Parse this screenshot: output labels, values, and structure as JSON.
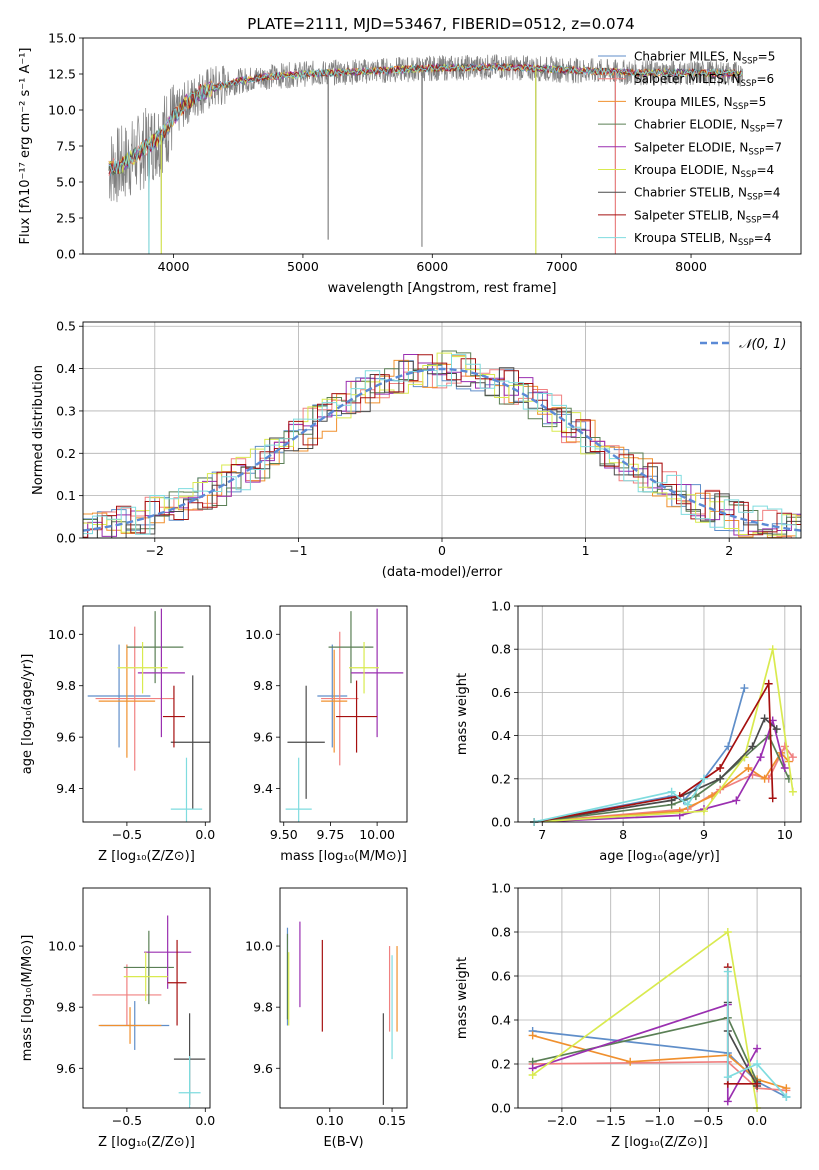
{
  "figure_title": "PLATE=2111, MJD=53467, FIBERID=0512, z=0.074",
  "models": [
    {
      "label": "Chabrier MILES, N",
      "sub": "SSP",
      "tail": "=5",
      "color": "#5f8ec9"
    },
    {
      "label": "Salpeter MILES, N",
      "sub": "SSP",
      "tail": "=6",
      "color": "#f08080"
    },
    {
      "label": "Kroupa MILES, N",
      "sub": "SSP",
      "tail": "=5",
      "color": "#f0902e"
    },
    {
      "label": "Chabrier ELODIE, N",
      "sub": "SSP",
      "tail": "=7",
      "color": "#5a7f55"
    },
    {
      "label": "Salpeter ELODIE, N",
      "sub": "SSP",
      "tail": "=7",
      "color": "#9a2fb0"
    },
    {
      "label": "Kroupa ELODIE, N",
      "sub": "SSP",
      "tail": "=4",
      "color": "#d9ea4f"
    },
    {
      "label": "Chabrier STELIB, N",
      "sub": "SSP",
      "tail": "=4",
      "color": "#4a4a4a"
    },
    {
      "label": "Salpeter STELIB, N",
      "sub": "SSP",
      "tail": "=4",
      "color": "#a51010"
    },
    {
      "label": "Kroupa STELIB, N",
      "sub": "SSP",
      "tail": "=4",
      "color": "#7fdcdf"
    }
  ],
  "chart_data": [
    {
      "id": "spectrum",
      "type": "line",
      "xlabel": "wavelength [Angstrom, rest frame]",
      "ylabel": "Flux [fλ10⁻¹⁷ erg cm⁻² s⁻¹ A⁻¹]",
      "xlim": [
        3300,
        8850
      ],
      "ylim": [
        0,
        15
      ],
      "xticks": [
        "4000",
        "5000",
        "6000",
        "7000",
        "8000"
      ],
      "yticks": [
        "0.0",
        "2.5",
        "5.0",
        "7.5",
        "10.0",
        "12.5",
        "15.0"
      ],
      "data_color": "#808080",
      "continuum": [
        [
          3500,
          6.0
        ],
        [
          3600,
          6.2
        ],
        [
          3700,
          6.8
        ],
        [
          3800,
          7.5
        ],
        [
          3900,
          8.2
        ],
        [
          4000,
          9.5
        ],
        [
          4100,
          10.5
        ],
        [
          4200,
          11.2
        ],
        [
          4300,
          11.5
        ],
        [
          4500,
          12.0
        ],
        [
          4700,
          12.3
        ],
        [
          5000,
          12.5
        ],
        [
          5500,
          12.7
        ],
        [
          6000,
          12.9
        ],
        [
          6500,
          13.0
        ],
        [
          7000,
          12.8
        ],
        [
          7500,
          12.6
        ],
        [
          8000,
          12.6
        ],
        [
          8400,
          12.5
        ]
      ],
      "spikes": [
        [
          3810,
          0.0
        ],
        [
          3905,
          0.0
        ],
        [
          5195,
          1.0
        ],
        [
          5920,
          0.5
        ],
        [
          6800,
          0.0
        ],
        [
          7415,
          0.0
        ]
      ],
      "legend_position": "upper right"
    },
    {
      "id": "residuals",
      "type": "histogram",
      "xlabel": "(data-model)/error",
      "ylabel": "Normed distribution",
      "xlim": [
        -2.5,
        2.5
      ],
      "ylim": [
        0,
        0.51
      ],
      "xticks": [
        "−2",
        "−1",
        "0",
        "1",
        "2"
      ],
      "yticks": [
        "0.0",
        "0.1",
        "0.2",
        "0.3",
        "0.4",
        "0.5"
      ],
      "reference": {
        "label": "𝒩(0, 1)",
        "color": "#5b8ad6",
        "mean": 0,
        "sigma": 1
      },
      "grid": true,
      "legend_position": "upper right"
    },
    {
      "id": "age_vs_Z",
      "type": "errorbar",
      "xlabel": "Z [log₁₀(Z/Z⊙)]",
      "ylabel": "age  [log₁₀(age/yr)]",
      "xlim": [
        -0.78,
        0.03
      ],
      "ylim": [
        9.27,
        10.11
      ],
      "xticks": [
        "−0.5",
        "0.0"
      ],
      "yticks": [
        "9.4",
        "9.6",
        "9.8",
        "10.0"
      ],
      "points": [
        {
          "x": -0.55,
          "xerr": 0.2,
          "y": 9.76,
          "yerr": 0.2
        },
        {
          "x": -0.45,
          "xerr": 0.25,
          "y": 9.75,
          "yerr": 0.28
        },
        {
          "x": -0.5,
          "xerr": 0.18,
          "y": 9.74,
          "yerr": 0.22
        },
        {
          "x": -0.32,
          "xerr": 0.18,
          "y": 9.95,
          "yerr": 0.14
        },
        {
          "x": -0.28,
          "xerr": 0.15,
          "y": 9.85,
          "yerr": 0.25
        },
        {
          "x": -0.4,
          "xerr": 0.16,
          "y": 9.87,
          "yerr": 0.1
        },
        {
          "x": -0.08,
          "xerr": 0.14,
          "y": 9.58,
          "yerr": 0.26
        },
        {
          "x": -0.2,
          "xerr": 0.07,
          "y": 9.68,
          "yerr": 0.12
        },
        {
          "x": -0.12,
          "xerr": 0.1,
          "y": 9.32,
          "yerr": 0.2
        }
      ]
    },
    {
      "id": "age_vs_mass",
      "type": "errorbar",
      "xlabel": "mass [log₁₀(M/M⊙)]",
      "ylabel": "",
      "xlim": [
        9.48,
        10.16
      ],
      "ylim": [
        9.27,
        10.11
      ],
      "xticks": [
        "9.50",
        "9.75",
        "10.00"
      ],
      "yticks": [
        "9.4",
        "9.6",
        "9.8",
        "10.0"
      ],
      "points": [
        {
          "x": 9.76,
          "xerr": 0.08,
          "y": 9.76,
          "yerr": 0.2
        },
        {
          "x": 9.8,
          "xerr": 0.1,
          "y": 9.75,
          "yerr": 0.26
        },
        {
          "x": 9.77,
          "xerr": 0.07,
          "y": 9.74,
          "yerr": 0.2
        },
        {
          "x": 9.86,
          "xerr": 0.12,
          "y": 9.95,
          "yerr": 0.14
        },
        {
          "x": 10.0,
          "xerr": 0.14,
          "y": 9.85,
          "yerr": 0.25
        },
        {
          "x": 9.93,
          "xerr": 0.08,
          "y": 9.87,
          "yerr": 0.1
        },
        {
          "x": 9.62,
          "xerr": 0.1,
          "y": 9.58,
          "yerr": 0.22
        },
        {
          "x": 9.89,
          "xerr": 0.11,
          "y": 9.68,
          "yerr": 0.14
        },
        {
          "x": 9.58,
          "xerr": 0.07,
          "y": 9.32,
          "yerr": 0.2
        }
      ]
    },
    {
      "id": "weight_vs_age",
      "type": "line",
      "xlabel": "age  [log₁₀(age/yr)]",
      "ylabel": "mass weight",
      "xlim": [
        6.7,
        10.2
      ],
      "ylim": [
        0,
        1
      ],
      "xticks": [
        "7",
        "8",
        "9",
        "10"
      ],
      "yticks": [
        "0.0",
        "0.2",
        "0.4",
        "0.6",
        "0.8",
        "1.0"
      ],
      "grid": true,
      "series": [
        {
          "x": [
            6.9,
            8.6,
            8.75,
            9.0,
            9.3,
            9.5
          ],
          "y": [
            0.0,
            0.12,
            0.1,
            0.2,
            0.35,
            0.62
          ]
        },
        {
          "x": [
            6.9,
            8.8,
            9.2,
            9.6,
            9.8,
            10.0,
            10.1
          ],
          "y": [
            0.0,
            0.06,
            0.15,
            0.22,
            0.2,
            0.35,
            0.3
          ]
        },
        {
          "x": [
            6.9,
            8.7,
            9.1,
            9.55,
            9.75,
            9.95,
            10.05
          ],
          "y": [
            0.0,
            0.05,
            0.12,
            0.25,
            0.2,
            0.32,
            0.28
          ]
        },
        {
          "x": [
            6.9,
            8.6,
            8.9,
            9.2,
            9.5,
            9.8,
            10.05
          ],
          "y": [
            0.0,
            0.08,
            0.12,
            0.2,
            0.3,
            0.4,
            0.2
          ]
        },
        {
          "x": [
            6.9,
            8.7,
            9.0,
            9.4,
            9.7,
            9.85,
            10.0
          ],
          "y": [
            0.0,
            0.03,
            0.06,
            0.1,
            0.3,
            0.47,
            0.25
          ]
        },
        {
          "x": [
            6.9,
            9.0,
            9.5,
            9.85,
            10.1
          ],
          "y": [
            0.0,
            0.05,
            0.3,
            0.8,
            0.14
          ]
        },
        {
          "x": [
            6.9,
            8.6,
            9.2,
            9.6,
            9.75,
            9.9
          ],
          "y": [
            0.0,
            0.1,
            0.2,
            0.35,
            0.48,
            0.43
          ]
        },
        {
          "x": [
            6.9,
            8.7,
            9.2,
            9.8,
            9.85
          ],
          "y": [
            0.0,
            0.12,
            0.25,
            0.64,
            0.11
          ]
        },
        {
          "x": [
            6.9,
            8.6,
            8.8,
            9.0
          ],
          "y": [
            0.0,
            0.14,
            0.08,
            0.2
          ]
        }
      ]
    },
    {
      "id": "mass_vs_Z",
      "type": "errorbar",
      "xlabel": "Z [log₁₀(Z/Z⊙)]",
      "ylabel": "mass [log₁₀(M/M⊙)]",
      "xlim": [
        -0.78,
        0.03
      ],
      "ylim": [
        9.47,
        10.19
      ],
      "xticks": [
        "−0.5",
        "0.0"
      ],
      "yticks": [
        "9.6",
        "9.8",
        "10.0"
      ],
      "points": [
        {
          "x": -0.45,
          "xerr": 0.22,
          "y": 9.74,
          "yerr": 0.08
        },
        {
          "x": -0.5,
          "xerr": 0.22,
          "y": 9.84,
          "yerr": 0.1
        },
        {
          "x": -0.48,
          "xerr": 0.2,
          "y": 9.74,
          "yerr": 0.06
        },
        {
          "x": -0.36,
          "xerr": 0.16,
          "y": 9.93,
          "yerr": 0.12
        },
        {
          "x": -0.24,
          "xerr": 0.15,
          "y": 9.98,
          "yerr": 0.12
        },
        {
          "x": -0.38,
          "xerr": 0.14,
          "y": 9.9,
          "yerr": 0.08
        },
        {
          "x": -0.1,
          "xerr": 0.1,
          "y": 9.63,
          "yerr": 0.15
        },
        {
          "x": -0.18,
          "xerr": 0.06,
          "y": 9.88,
          "yerr": 0.14
        },
        {
          "x": -0.1,
          "xerr": 0.07,
          "y": 9.52,
          "yerr": 0.12
        }
      ]
    },
    {
      "id": "mass_vs_EBV",
      "type": "errorbar",
      "xlabel": "E(B-V)",
      "ylabel": "",
      "xlim": [
        0.06,
        0.162
      ],
      "ylim": [
        9.47,
        10.19
      ],
      "xticks": [
        "0.10",
        "0.15"
      ],
      "yticks": [
        "9.6",
        "9.8",
        "10.0"
      ],
      "points": [
        {
          "x": 0.066,
          "xerr": 0,
          "y": 9.9,
          "yerr": 0.16
        },
        {
          "x": 0.148,
          "xerr": 0,
          "y": 9.86,
          "yerr": 0.14
        },
        {
          "x": 0.154,
          "xerr": 0,
          "y": 9.86,
          "yerr": 0.14
        },
        {
          "x": 0.066,
          "xerr": 0,
          "y": 9.9,
          "yerr": 0.14
        },
        {
          "x": 0.076,
          "xerr": 0,
          "y": 9.94,
          "yerr": 0.14
        },
        {
          "x": 0.067,
          "xerr": 0,
          "y": 9.86,
          "yerr": 0.12
        },
        {
          "x": 0.143,
          "xerr": 0,
          "y": 9.63,
          "yerr": 0.15
        },
        {
          "x": 0.094,
          "xerr": 0,
          "y": 9.87,
          "yerr": 0.15
        },
        {
          "x": 0.15,
          "xerr": 0,
          "y": 9.8,
          "yerr": 0.17
        }
      ]
    },
    {
      "id": "weight_vs_Z",
      "type": "line",
      "xlabel": "Z [log₁₀(Z/Z⊙)]",
      "ylabel": "mass weight",
      "xlim": [
        -2.45,
        0.45
      ],
      "ylim": [
        0,
        1
      ],
      "xticks": [
        "−2.0",
        "−1.5",
        "−1.0",
        "−0.5",
        "0.0"
      ],
      "yticks": [
        "0.0",
        "0.2",
        "0.4",
        "0.6",
        "0.8",
        "1.0"
      ],
      "grid": true,
      "series": [
        {
          "x": [
            -2.3,
            -0.3,
            0.0,
            0.3
          ],
          "y": [
            0.35,
            0.25,
            0.12,
            0.05
          ]
        },
        {
          "x": [
            -2.3,
            -0.3,
            0.0,
            0.3
          ],
          "y": [
            0.2,
            0.21,
            0.09,
            0.08
          ]
        },
        {
          "x": [
            -2.3,
            -1.3,
            -0.3,
            0.0,
            0.3
          ],
          "y": [
            0.33,
            0.21,
            0.24,
            0.13,
            0.09
          ]
        },
        {
          "x": [
            -2.3,
            -0.3,
            0.0
          ],
          "y": [
            0.21,
            0.41,
            0.12
          ]
        },
        {
          "x": [
            -2.3,
            -0.3,
            -0.3,
            0.0
          ],
          "y": [
            0.18,
            0.47,
            0.03,
            0.27
          ]
        },
        {
          "x": [
            -2.3,
            -0.3,
            0.0
          ],
          "y": [
            0.15,
            0.8,
            0.0
          ]
        },
        {
          "x": [
            -0.3,
            -0.3,
            0.0
          ],
          "y": [
            0.48,
            0.35,
            0.1
          ]
        },
        {
          "x": [
            -0.3,
            -0.3,
            0.0
          ],
          "y": [
            0.64,
            0.11,
            0.11
          ]
        },
        {
          "x": [
            -0.3,
            -0.3,
            0.0,
            0.3
          ],
          "y": [
            0.62,
            0.14,
            0.2,
            0.05
          ]
        }
      ]
    }
  ]
}
